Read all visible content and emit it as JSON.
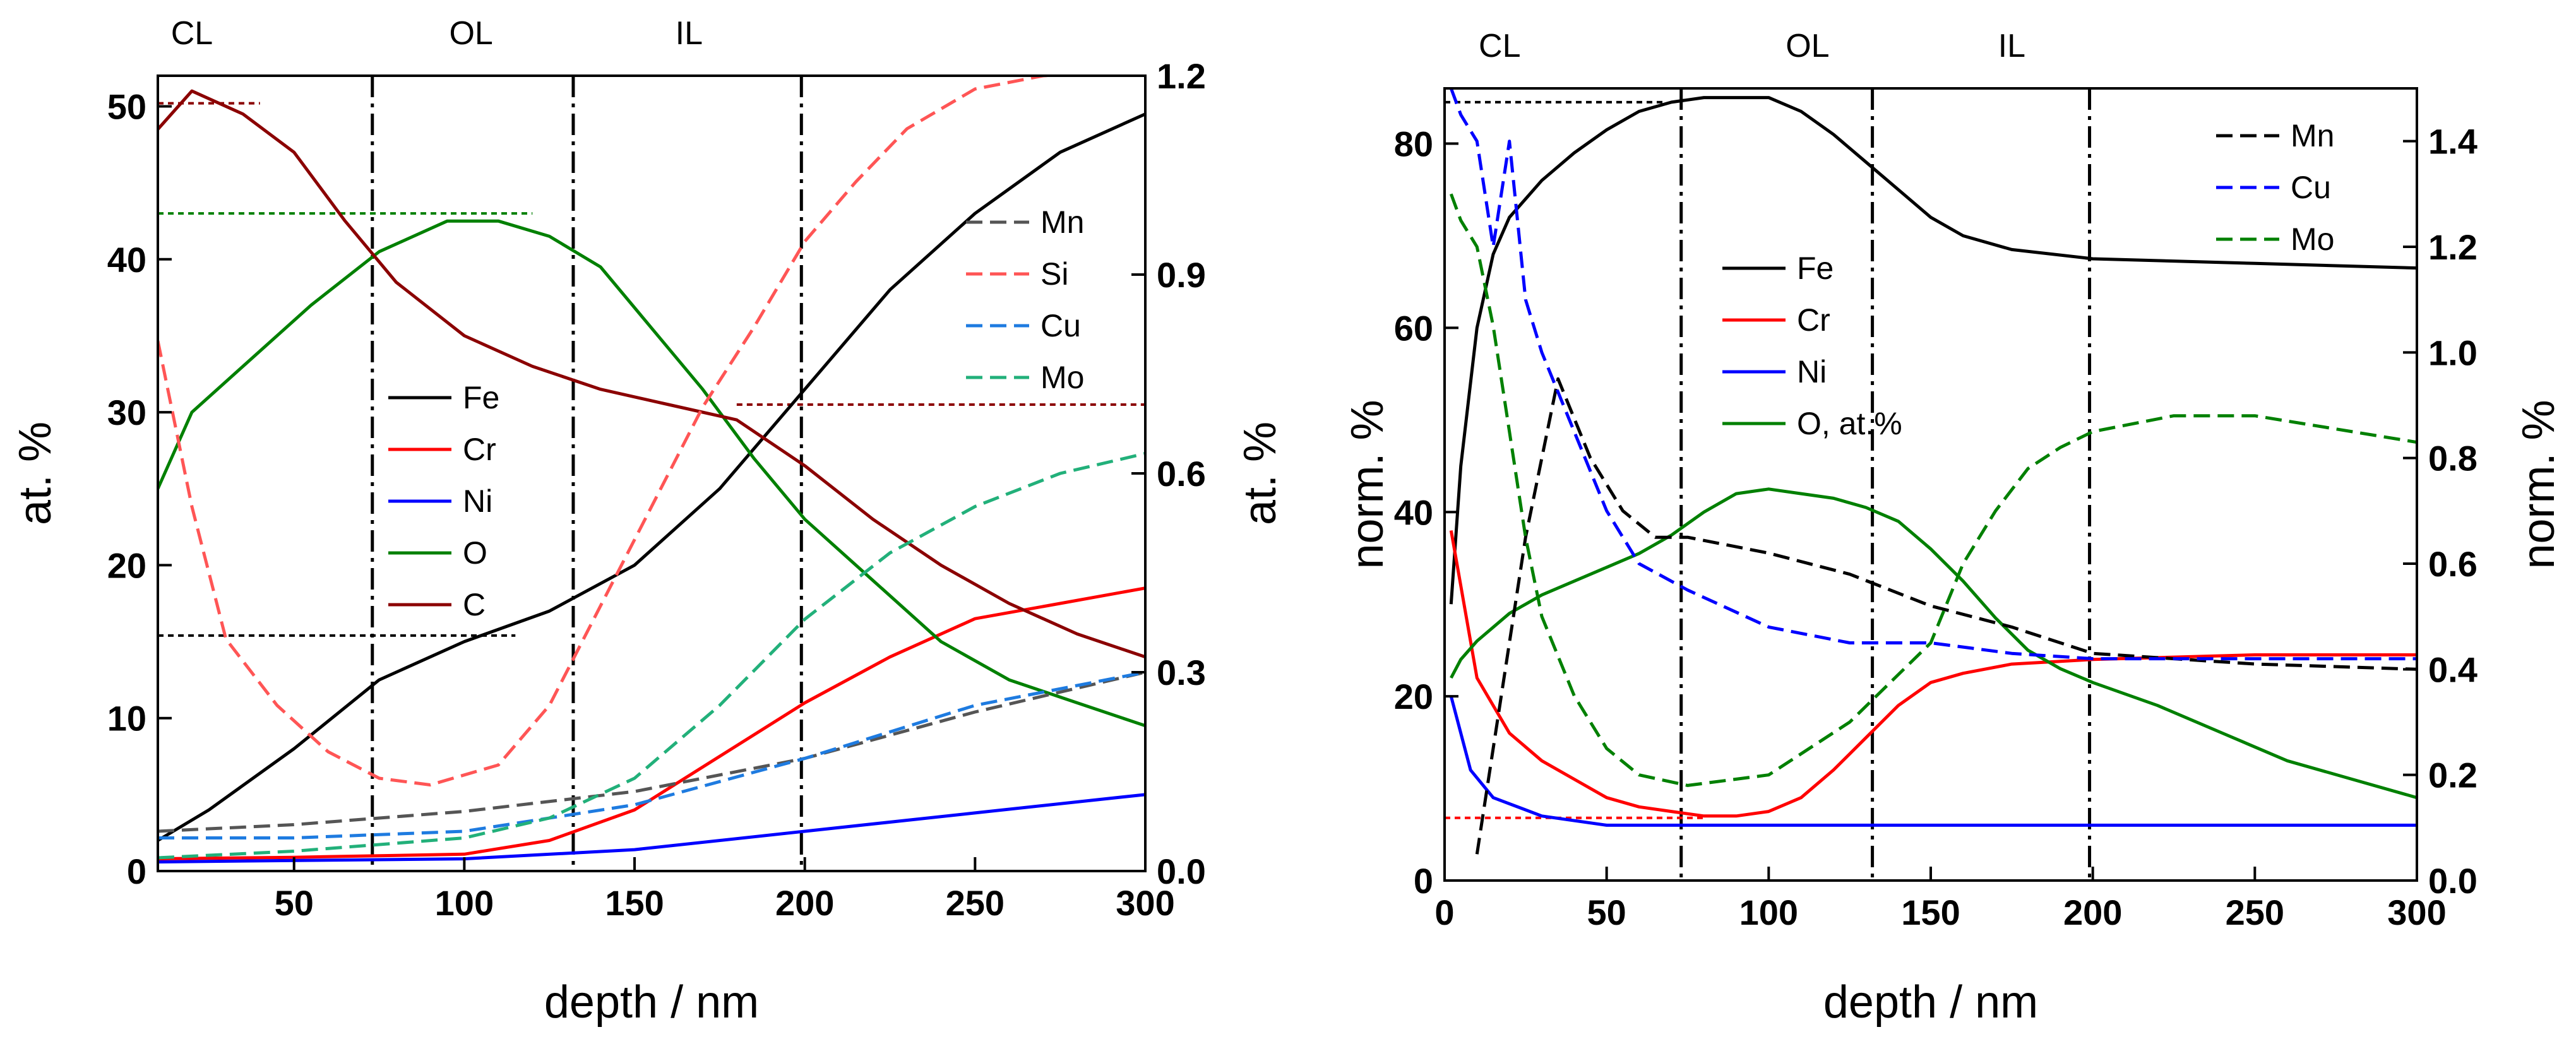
{
  "colors": {
    "Fe": "#000000",
    "Cr": "#ff0000",
    "Ni": "#0000ff",
    "O": "#008000",
    "C": "#8b0000",
    "Mn_left": "#555555",
    "Si": "#ff5555",
    "Cu_left": "#1e7be0",
    "Mo_left": "#22b07a",
    "Mn_right": "#000000",
    "Cu_right": "#0000ff",
    "Mo_right": "#008000"
  },
  "chart_data": [
    {
      "type": "line",
      "panel": "left",
      "xlabel": "depth / nm",
      "ylabel_left": "at. %",
      "ylabel_right": "at. %",
      "xlim": [
        10,
        300
      ],
      "ylim_left": [
        0,
        52
      ],
      "ylim_right": [
        0,
        1.2
      ],
      "x_ticks": [
        50,
        100,
        150,
        200,
        250,
        300
      ],
      "y_ticks_left": [
        0,
        10,
        20,
        30,
        40,
        50
      ],
      "y_ticks_right": [
        "0.0",
        "0.3",
        "0.6",
        "0.9",
        "1.2"
      ],
      "regions": [
        {
          "label": "CL",
          "x": 20
        },
        {
          "label": "OL",
          "x": 102
        },
        {
          "label": "IL",
          "x": 166
        }
      ],
      "vlines": [
        73,
        132,
        199
      ],
      "hlines": [
        {
          "y": 50.2,
          "axis": "left",
          "series": "C",
          "x_to": 40
        },
        {
          "y": 43.0,
          "axis": "left",
          "series": "O",
          "x_to": 120
        },
        {
          "y": 15.4,
          "axis": "left",
          "series": "Fe",
          "x_to": 115
        },
        {
          "y": 30.5,
          "axis": "left",
          "series": "C",
          "x_from": 180
        }
      ],
      "legend_left": [
        "Fe",
        "Cr",
        "Ni",
        "O",
        "C"
      ],
      "legend_right": [
        "Mn",
        "Si",
        "Cu",
        "Mo"
      ],
      "series": [
        {
          "name": "Fe",
          "axis": "left",
          "style": "solid",
          "x": [
            10,
            25,
            50,
            75,
            100,
            125,
            150,
            175,
            200,
            225,
            250,
            275,
            300
          ],
          "y": [
            2,
            4,
            8,
            12.5,
            15,
            17,
            20,
            25,
            31.5,
            38,
            43,
            47,
            49.5
          ]
        },
        {
          "name": "Cr",
          "axis": "left",
          "style": "solid",
          "x": [
            10,
            50,
            100,
            125,
            150,
            175,
            200,
            225,
            250,
            275,
            300
          ],
          "y": [
            0.8,
            0.9,
            1.1,
            2,
            4,
            7.5,
            11,
            14,
            16.5,
            17.5,
            18.5
          ]
        },
        {
          "name": "Ni",
          "axis": "left",
          "style": "solid",
          "x": [
            10,
            100,
            150,
            200,
            250,
            300
          ],
          "y": [
            0.6,
            0.8,
            1.4,
            2.6,
            3.8,
            5
          ]
        },
        {
          "name": "O",
          "axis": "left",
          "style": "solid",
          "x": [
            10,
            20,
            35,
            55,
            75,
            95,
            110,
            125,
            140,
            155,
            170,
            185,
            200,
            220,
            240,
            260,
            280,
            300
          ],
          "y": [
            25,
            30,
            33,
            37,
            40.5,
            42.5,
            42.5,
            41.5,
            39.5,
            35.5,
            31.5,
            27,
            23,
            19,
            15,
            12.5,
            11,
            9.5
          ]
        },
        {
          "name": "C",
          "axis": "left",
          "style": "solid",
          "x": [
            10,
            20,
            35,
            50,
            65,
            80,
            100,
            120,
            140,
            160,
            180,
            200,
            220,
            240,
            260,
            280,
            300
          ],
          "y": [
            48.5,
            51,
            49.5,
            47,
            42.5,
            38.5,
            35,
            33,
            31.5,
            30.5,
            29.5,
            26.5,
            23,
            20,
            17.5,
            15.5,
            14
          ]
        },
        {
          "name": "Mn",
          "axis": "right",
          "style": "dashed",
          "x": [
            10,
            50,
            100,
            150,
            200,
            250,
            300
          ],
          "y": [
            0.06,
            0.07,
            0.09,
            0.12,
            0.17,
            0.24,
            0.3
          ]
        },
        {
          "name": "Si",
          "axis": "right",
          "style": "dashed",
          "x": [
            10,
            20,
            30,
            45,
            60,
            75,
            90,
            110,
            125,
            140,
            155,
            170,
            185,
            200,
            215,
            230,
            250,
            270,
            300
          ],
          "y": [
            0.8,
            0.55,
            0.35,
            0.25,
            0.18,
            0.14,
            0.13,
            0.16,
            0.25,
            0.4,
            0.55,
            0.7,
            0.82,
            0.95,
            1.04,
            1.12,
            1.18,
            1.2,
            1.21
          ]
        },
        {
          "name": "Cu",
          "axis": "right",
          "style": "dashed",
          "x": [
            10,
            50,
            100,
            150,
            200,
            250,
            300
          ],
          "y": [
            0.05,
            0.05,
            0.06,
            0.1,
            0.17,
            0.25,
            0.3
          ]
        },
        {
          "name": "Mo",
          "axis": "right",
          "style": "dashed",
          "x": [
            10,
            50,
            100,
            125,
            150,
            175,
            200,
            225,
            250,
            275,
            300
          ],
          "y": [
            0.02,
            0.03,
            0.05,
            0.08,
            0.14,
            0.25,
            0.38,
            0.48,
            0.55,
            0.6,
            0.63
          ]
        }
      ]
    },
    {
      "type": "line",
      "panel": "right",
      "xlabel": "depth / nm",
      "ylabel_left": "norm. %",
      "ylabel_right": "norm. %",
      "xlim": [
        0,
        300
      ],
      "ylim_left": [
        0,
        86
      ],
      "ylim_right": [
        0,
        1.5
      ],
      "x_ticks": [
        0,
        50,
        100,
        150,
        200,
        250,
        300
      ],
      "y_ticks_left": [
        0,
        20,
        40,
        60,
        80
      ],
      "y_ticks_right": [
        "0.0",
        "0.2",
        "0.4",
        "0.6",
        "0.8",
        "1.0",
        "1.2",
        "1.4"
      ],
      "regions": [
        {
          "label": "CL",
          "x": 17
        },
        {
          "label": "OL",
          "x": 112
        },
        {
          "label": "IL",
          "x": 175
        }
      ],
      "vlines": [
        73,
        132,
        199
      ],
      "hlines": [
        {
          "y": 84.5,
          "axis": "left",
          "series": "Fe",
          "x_to": 68
        },
        {
          "y": 6.8,
          "axis": "left",
          "series": "Cr",
          "x_to": 80
        }
      ],
      "legend_left": [
        "Fe",
        "Cr",
        "Ni",
        "O, at.%"
      ],
      "legend_right": [
        "Mn",
        "Cu",
        "Mo"
      ],
      "series": [
        {
          "name": "Fe",
          "axis": "left",
          "style": "solid",
          "x": [
            2,
            5,
            10,
            15,
            20,
            30,
            40,
            50,
            60,
            70,
            80,
            90,
            100,
            110,
            120,
            130,
            140,
            150,
            160,
            175,
            200,
            250,
            300
          ],
          "y": [
            30,
            45,
            60,
            68,
            72,
            76,
            79,
            81.5,
            83.5,
            84.5,
            85,
            85,
            85,
            83.5,
            81,
            78,
            75,
            72,
            70,
            68.5,
            67.5,
            67,
            66.5
          ]
        },
        {
          "name": "Cr",
          "axis": "left",
          "style": "solid",
          "x": [
            2,
            5,
            10,
            20,
            30,
            40,
            50,
            60,
            70,
            80,
            90,
            100,
            110,
            120,
            130,
            140,
            150,
            160,
            175,
            200,
            250,
            300
          ],
          "y": [
            38,
            32,
            22,
            16,
            13,
            11,
            9,
            8,
            7.5,
            7,
            7,
            7.5,
            9,
            12,
            15.5,
            19,
            21.5,
            22.5,
            23.5,
            24,
            24.5,
            24.5
          ]
        },
        {
          "name": "Ni",
          "axis": "left",
          "style": "solid",
          "x": [
            2,
            8,
            15,
            30,
            50,
            100,
            150,
            200,
            300
          ],
          "y": [
            20,
            12,
            9,
            7,
            6,
            6,
            6,
            6,
            6
          ]
        },
        {
          "name": "O, at.%",
          "axis": "left",
          "style": "solid",
          "x": [
            2,
            5,
            10,
            20,
            30,
            40,
            50,
            60,
            70,
            80,
            90,
            100,
            110,
            120,
            130,
            140,
            150,
            160,
            170,
            180,
            190,
            200,
            220,
            240,
            260,
            280,
            300
          ],
          "y": [
            22,
            24,
            26,
            29,
            31,
            32.5,
            34,
            35.5,
            37.5,
            40,
            42,
            42.5,
            42,
            41.5,
            40.5,
            39,
            36,
            32.5,
            28.5,
            25,
            23,
            21.5,
            19,
            16,
            13,
            11,
            9
          ]
        },
        {
          "name": "Mn",
          "axis": "right",
          "style": "dashed",
          "x": [
            10,
            15,
            25,
            35,
            45,
            55,
            65,
            75,
            100,
            125,
            150,
            175,
            200,
            250,
            300
          ],
          "y": [
            0.05,
            0.25,
            0.65,
            0.95,
            0.8,
            0.7,
            0.65,
            0.65,
            0.62,
            0.58,
            0.52,
            0.48,
            0.43,
            0.41,
            0.4
          ]
        },
        {
          "name": "Cu",
          "axis": "right",
          "style": "dashed",
          "x": [
            2,
            5,
            10,
            15,
            20,
            25,
            30,
            40,
            50,
            60,
            75,
            100,
            125,
            150,
            175,
            200,
            250,
            300
          ],
          "y": [
            1.5,
            1.45,
            1.4,
            1.2,
            1.4,
            1.1,
            1.0,
            0.85,
            0.7,
            0.6,
            0.55,
            0.48,
            0.45,
            0.45,
            0.43,
            0.42,
            0.42,
            0.42
          ]
        },
        {
          "name": "Mo",
          "axis": "right",
          "style": "dashed",
          "x": [
            2,
            5,
            10,
            15,
            20,
            25,
            30,
            40,
            50,
            60,
            75,
            100,
            125,
            150,
            160,
            170,
            180,
            190,
            200,
            225,
            250,
            300
          ],
          "y": [
            1.3,
            1.25,
            1.2,
            1.05,
            0.85,
            0.65,
            0.5,
            0.35,
            0.25,
            0.2,
            0.18,
            0.2,
            0.3,
            0.45,
            0.6,
            0.7,
            0.78,
            0.82,
            0.85,
            0.88,
            0.88,
            0.83
          ]
        }
      ]
    }
  ]
}
